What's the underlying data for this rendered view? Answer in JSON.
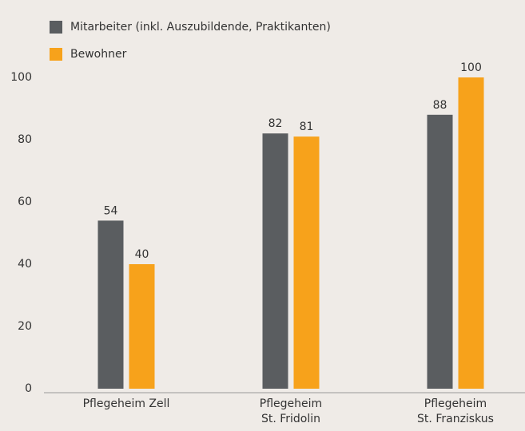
{
  "chart_data": {
    "type": "bar",
    "categories": [
      "Pflegeheim Zell",
      "Pflegeheim\nSt. Fridolin",
      "Pflegeheim\nSt. Franziskus"
    ],
    "series": [
      {
        "name": "Mitarbeiter (inkl. Auszubildende, Praktikanten)",
        "color": "#5a5d60",
        "values": [
          54,
          82,
          88
        ]
      },
      {
        "name": "Bewohner",
        "color": "#f7a21b",
        "values": [
          40,
          81,
          100
        ]
      }
    ],
    "ylim": [
      0,
      100
    ],
    "yticks": [
      0,
      20,
      40,
      60,
      80,
      100
    ],
    "grid": false
  }
}
